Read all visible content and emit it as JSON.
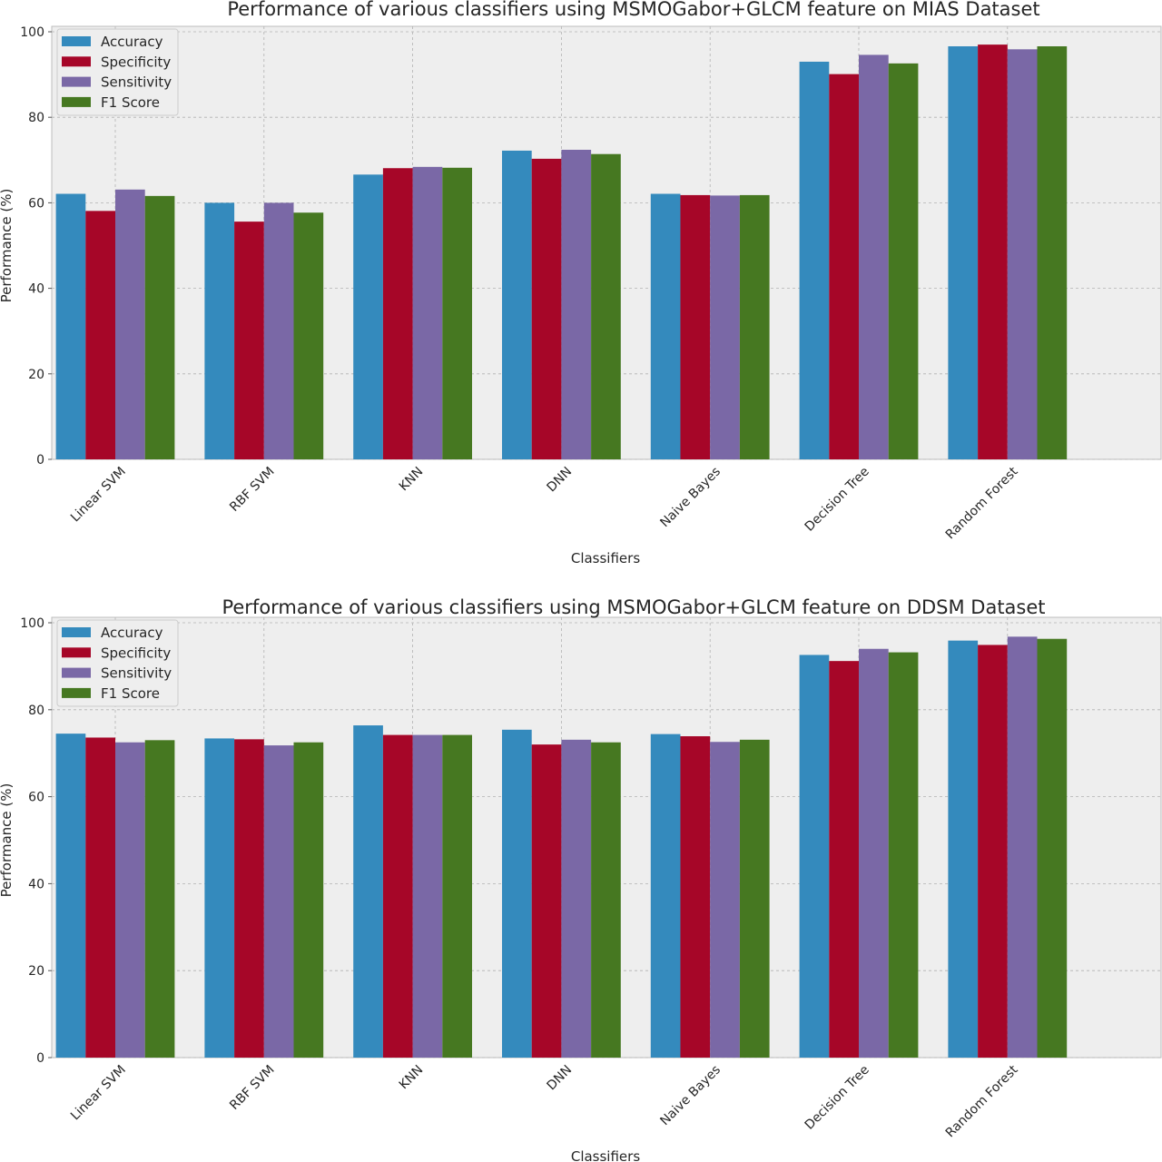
{
  "chart_data": [
    {
      "type": "bar",
      "title": "Performance of various classifiers using MSMOGabor+GLCM feature on MIAS Dataset",
      "xlabel": "Classifiers",
      "ylabel": "Performance (%)",
      "ylim": [
        0,
        100
      ],
      "yticks": [
        0,
        20,
        40,
        60,
        80,
        100
      ],
      "grid": true,
      "legend_position": "top-left",
      "categories": [
        "Linear SVM",
        "RBF SVM",
        "KNN",
        "DNN",
        "Naive Bayes",
        "Decision Tree",
        "Random Forest"
      ],
      "series": [
        {
          "name": "Accuracy",
          "color": "#348ABD",
          "values": [
            62.1,
            60.0,
            66.6,
            72.2,
            62.1,
            93.0,
            96.6
          ]
        },
        {
          "name": "Specificity",
          "color": "#A60628",
          "values": [
            58.1,
            55.6,
            68.1,
            70.3,
            61.8,
            90.1,
            97.0
          ]
        },
        {
          "name": "Sensitivity",
          "color": "#7A68A6",
          "values": [
            63.1,
            60.0,
            68.4,
            72.4,
            61.7,
            94.6,
            95.9
          ]
        },
        {
          "name": "F1 Score",
          "color": "#467821",
          "values": [
            61.6,
            57.7,
            68.2,
            71.4,
            61.8,
            92.6,
            96.6
          ]
        }
      ]
    },
    {
      "type": "bar",
      "title": "Performance of various classifiers using MSMOGabor+GLCM feature on DDSM Dataset",
      "xlabel": "Classifiers",
      "ylabel": "Performance (%)",
      "ylim": [
        0,
        100
      ],
      "yticks": [
        0,
        20,
        40,
        60,
        80,
        100
      ],
      "grid": true,
      "legend_position": "top-left",
      "categories": [
        "Linear SVM",
        "RBF SVM",
        "KNN",
        "DNN",
        "Naive Bayes",
        "Decision Tree",
        "Random Forest"
      ],
      "series": [
        {
          "name": "Accuracy",
          "color": "#348ABD",
          "values": [
            74.5,
            73.4,
            76.4,
            75.4,
            74.4,
            92.6,
            95.9
          ]
        },
        {
          "name": "Specificity",
          "color": "#A60628",
          "values": [
            73.6,
            73.2,
            74.2,
            72.0,
            73.9,
            91.2,
            94.9
          ]
        },
        {
          "name": "Sensitivity",
          "color": "#7A68A6",
          "values": [
            72.5,
            71.8,
            74.2,
            73.1,
            72.6,
            94.0,
            96.8
          ]
        },
        {
          "name": "F1 Score",
          "color": "#467821",
          "values": [
            73.0,
            72.5,
            74.2,
            72.5,
            73.1,
            93.2,
            96.3
          ]
        }
      ]
    }
  ]
}
